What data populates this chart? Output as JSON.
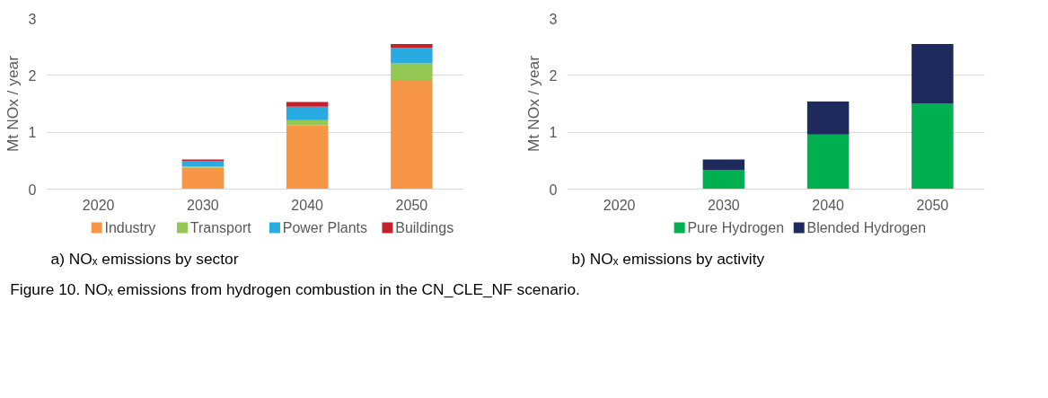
{
  "chart_data": [
    {
      "type": "bar",
      "stacked": true,
      "categories": [
        "2020",
        "2030",
        "2040",
        "2050"
      ],
      "ylabel": "Mt NOx / year",
      "ylim": [
        0,
        3
      ],
      "yticks": [
        0,
        1,
        2,
        3
      ],
      "grid": "y",
      "legend": "bottom",
      "series": [
        {
          "name": "Industry",
          "color": "#f79646",
          "values": [
            0,
            0.38,
            1.12,
            1.92
          ]
        },
        {
          "name": "Transport",
          "color": "#92c853",
          "values": [
            0,
            0.02,
            0.09,
            0.29
          ]
        },
        {
          "name": "Power Plants",
          "color": "#29abe2",
          "values": [
            0,
            0.09,
            0.24,
            0.27
          ]
        },
        {
          "name": "Buildings",
          "color": "#c5202e",
          "values": [
            0,
            0.03,
            0.08,
            0.07
          ]
        }
      ],
      "annotations": [
        "a) NOₓ emissions by sector"
      ]
    },
    {
      "type": "bar",
      "stacked": true,
      "categories": [
        "2020",
        "2030",
        "2040",
        "2050"
      ],
      "ylabel": "Mt NOx / year",
      "ylim": [
        0,
        3
      ],
      "yticks": [
        0,
        1,
        2,
        3
      ],
      "grid": "y",
      "legend": "bottom",
      "series": [
        {
          "name": "Pure Hydrogen",
          "color": "#00b050",
          "values": [
            0,
            0.34,
            0.96,
            1.5
          ]
        },
        {
          "name": "Blended Hydrogen",
          "color": "#1f2a5c",
          "values": [
            0,
            0.18,
            0.58,
            1.05
          ]
        }
      ],
      "annotations": [
        "b) NOₓ emissions by activity",
        "Figure 10. NOₓ emissions from hydrogen combustion in the CN_CLE_NF scenario."
      ]
    }
  ]
}
